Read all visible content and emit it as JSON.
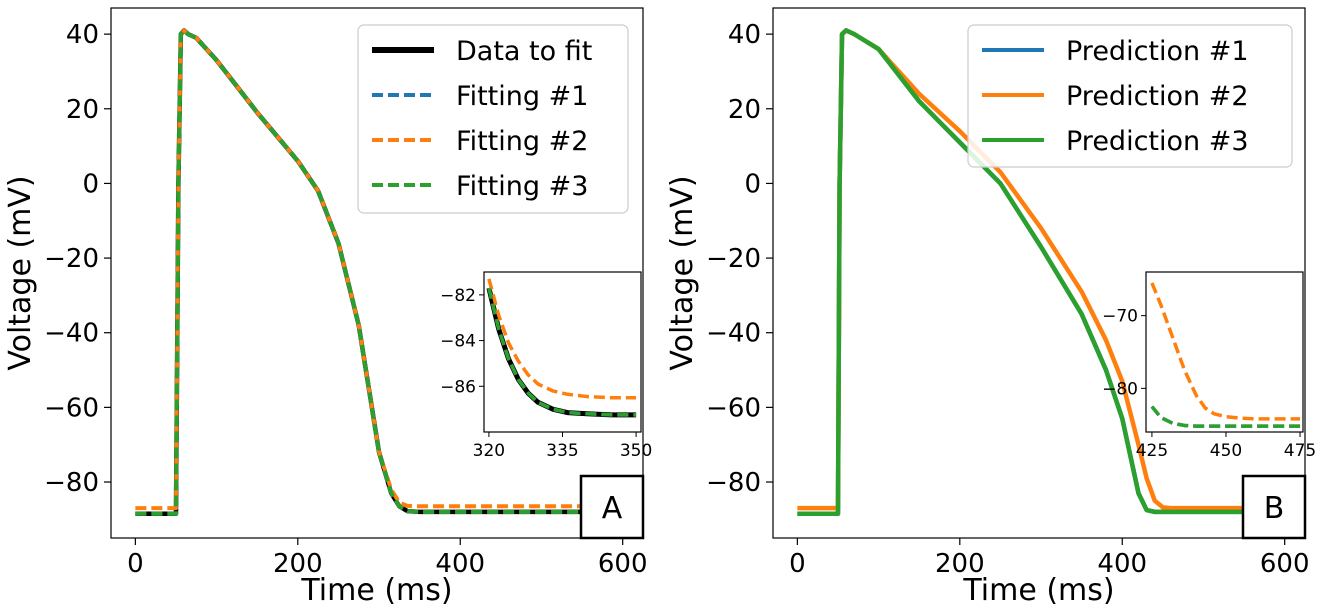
{
  "chart_data": [
    {
      "id": "A",
      "type": "line",
      "panel_label": "A",
      "xlabel": "Time (ms)",
      "ylabel": "Voltage (mV)",
      "xlim": [
        -30,
        625
      ],
      "ylim": [
        -95,
        47
      ],
      "xticks": [
        0,
        200,
        400,
        600
      ],
      "yticks": [
        40,
        20,
        0,
        -20,
        -40,
        -60,
        -80
      ],
      "legend_position": "top-right",
      "series": [
        {
          "name": "Data to fit",
          "color": "#000000",
          "style": "solid",
          "x": [
            0,
            50,
            53,
            56,
            60,
            65,
            75,
            100,
            150,
            200,
            225,
            250,
            275,
            300,
            315,
            325,
            335,
            350,
            400,
            500,
            600
          ],
          "y": [
            -88.5,
            -88.5,
            0,
            40,
            41,
            40,
            39,
            33,
            19,
            6,
            -2,
            -16,
            -38,
            -72,
            -83,
            -86.5,
            -87.8,
            -88,
            -88,
            -88,
            -88
          ]
        },
        {
          "name": "Fitting #1",
          "color": "#1f77b4",
          "style": "dashed",
          "x": [
            0,
            50,
            53,
            56,
            60,
            65,
            75,
            100,
            150,
            200,
            225,
            250,
            275,
            300,
            315,
            325,
            335,
            350,
            400,
            500,
            600
          ],
          "y": [
            -88.5,
            -88.5,
            0,
            40,
            41,
            40,
            39,
            33,
            19,
            6,
            -2,
            -16,
            -38,
            -72,
            -83,
            -86.5,
            -87.8,
            -88,
            -88,
            -88,
            -88
          ]
        },
        {
          "name": "Fitting #2",
          "color": "#ff7f0e",
          "style": "dashed",
          "x": [
            0,
            50,
            53,
            56,
            60,
            65,
            75,
            100,
            150,
            200,
            225,
            250,
            275,
            300,
            315,
            325,
            335,
            350,
            400,
            500,
            600
          ],
          "y": [
            -87,
            -87,
            0,
            40,
            41,
            40,
            39,
            33,
            19,
            6,
            -2,
            -16,
            -38,
            -72,
            -82,
            -85.5,
            -86.4,
            -86.5,
            -86.5,
            -86.5,
            -86.5
          ]
        },
        {
          "name": "Fitting #3",
          "color": "#2ca02c",
          "style": "dashed",
          "x": [
            0,
            50,
            53,
            56,
            60,
            65,
            75,
            100,
            150,
            200,
            225,
            250,
            275,
            300,
            315,
            325,
            335,
            350,
            400,
            500,
            600
          ],
          "y": [
            -88.5,
            -88.5,
            0,
            40,
            41,
            40,
            39,
            33,
            19,
            6,
            -2,
            -16,
            -38,
            -72,
            -83,
            -86.5,
            -87.8,
            -88,
            -88,
            -88,
            -88
          ]
        }
      ],
      "inset": {
        "xlim": [
          319,
          351
        ],
        "ylim": [
          -88,
          -81
        ],
        "xticks": [
          320,
          335,
          350
        ],
        "yticks": [
          -82,
          -84,
          -86
        ],
        "series": [
          {
            "name": "Data to fit",
            "color": "#000000",
            "style": "solid",
            "x": [
              320,
              322,
              324,
              326,
              328,
              330,
              333,
              336,
              340,
              345,
              350
            ],
            "y": [
              -81.7,
              -83.5,
              -84.8,
              -85.7,
              -86.3,
              -86.7,
              -87.0,
              -87.15,
              -87.2,
              -87.25,
              -87.25
            ]
          },
          {
            "name": "Fitting #1",
            "color": "#1f77b4",
            "style": "dashed",
            "x": [
              320,
              322,
              324,
              326,
              328,
              330,
              333,
              336,
              340,
              345,
              350
            ],
            "y": [
              -81.7,
              -83.5,
              -84.8,
              -85.7,
              -86.3,
              -86.7,
              -87.0,
              -87.15,
              -87.2,
              -87.25,
              -87.25
            ]
          },
          {
            "name": "Fitting #2",
            "color": "#ff7f0e",
            "style": "dashed",
            "x": [
              320,
              322,
              324,
              326,
              328,
              330,
              333,
              336,
              340,
              345,
              350
            ],
            "y": [
              -81.3,
              -82.9,
              -84.1,
              -84.9,
              -85.5,
              -85.9,
              -86.2,
              -86.35,
              -86.45,
              -86.5,
              -86.5
            ]
          },
          {
            "name": "Fitting #3",
            "color": "#2ca02c",
            "style": "dashed",
            "x": [
              320,
              322,
              324,
              326,
              328,
              330,
              333,
              336,
              340,
              345,
              350
            ],
            "y": [
              -81.7,
              -83.5,
              -84.8,
              -85.7,
              -86.3,
              -86.7,
              -87.0,
              -87.15,
              -87.2,
              -87.25,
              -87.25
            ]
          }
        ]
      }
    },
    {
      "id": "B",
      "type": "line",
      "panel_label": "B",
      "xlabel": "Time (ms)",
      "ylabel": "Voltage (mV)",
      "xlim": [
        -30,
        625
      ],
      "ylim": [
        -95,
        47
      ],
      "xticks": [
        0,
        200,
        400,
        600
      ],
      "yticks": [
        40,
        20,
        0,
        -20,
        -40,
        -60,
        -80
      ],
      "legend_position": "top-right",
      "series": [
        {
          "name": "Prediction #1",
          "color": "#1f77b4",
          "style": "solid",
          "x": [
            0,
            50,
            52,
            55,
            60,
            70,
            100,
            150,
            200,
            250,
            300,
            350,
            380,
            400,
            410,
            420,
            430,
            440,
            450,
            500,
            600
          ],
          "y": [
            -88.5,
            -88.5,
            0,
            40,
            41,
            40,
            36,
            22,
            11,
            0,
            -17,
            -35,
            -50,
            -63,
            -73,
            -83,
            -87.5,
            -88,
            -88,
            -88,
            -88
          ]
        },
        {
          "name": "Prediction #2",
          "color": "#ff7f0e",
          "style": "solid",
          "x": [
            0,
            50,
            52,
            55,
            60,
            70,
            100,
            150,
            200,
            250,
            300,
            350,
            380,
            400,
            420,
            430,
            440,
            450,
            460,
            500,
            600
          ],
          "y": [
            -87,
            -87,
            0,
            40,
            41,
            40,
            36,
            24,
            14,
            3,
            -12,
            -29,
            -42,
            -53,
            -70,
            -79,
            -85,
            -86.8,
            -87,
            -87,
            -87
          ]
        },
        {
          "name": "Prediction #3",
          "color": "#2ca02c",
          "style": "solid",
          "x": [
            0,
            50,
            52,
            55,
            60,
            70,
            100,
            150,
            200,
            250,
            300,
            350,
            380,
            400,
            410,
            420,
            430,
            440,
            450,
            500,
            600
          ],
          "y": [
            -88.5,
            -88.5,
            0,
            40,
            41,
            40,
            36,
            22,
            11,
            0,
            -17,
            -35,
            -50,
            -63,
            -73,
            -83,
            -87.5,
            -88,
            -88,
            -88,
            -88
          ]
        }
      ],
      "inset": {
        "xlim": [
          423,
          476
        ],
        "ylim": [
          -86,
          -64
        ],
        "xticks": [
          425,
          450,
          475
        ],
        "yticks": [
          -70,
          -80
        ],
        "series": [
          {
            "name": "Prediction #1",
            "color": "#1f77b4",
            "style": "dashed",
            "x": [
              425,
              428,
              432,
              436,
              440,
              445,
              450,
              460,
              475
            ],
            "y": [
              -82.5,
              -84.0,
              -84.8,
              -85.1,
              -85.2,
              -85.2,
              -85.2,
              -85.2,
              -85.2
            ]
          },
          {
            "name": "Prediction #2",
            "color": "#ff7f0e",
            "style": "dashed",
            "x": [
              425,
              428,
              432,
              436,
              440,
              443,
              446,
              450,
              455,
              460,
              475
            ],
            "y": [
              -65.5,
              -68.5,
              -73,
              -77.5,
              -81,
              -82.7,
              -83.5,
              -83.9,
              -84.1,
              -84.2,
              -84.2
            ]
          },
          {
            "name": "Prediction #3",
            "color": "#2ca02c",
            "style": "dashed",
            "x": [
              425,
              428,
              432,
              436,
              440,
              445,
              450,
              460,
              475
            ],
            "y": [
              -82.5,
              -84.0,
              -84.8,
              -85.1,
              -85.2,
              -85.2,
              -85.2,
              -85.2,
              -85.2
            ]
          }
        ]
      }
    }
  ]
}
